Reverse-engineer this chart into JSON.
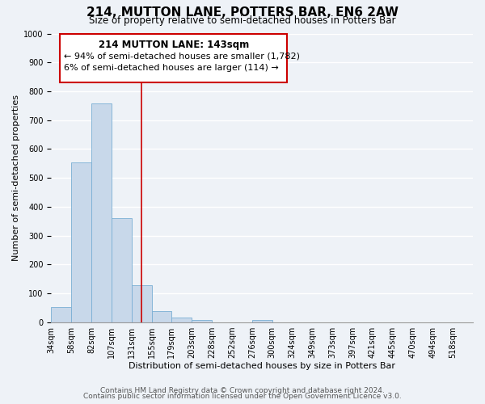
{
  "title": "214, MUTTON LANE, POTTERS BAR, EN6 2AW",
  "subtitle": "Size of property relative to semi-detached houses in Potters Bar",
  "xlabel": "Distribution of semi-detached houses by size in Potters Bar",
  "ylabel": "Number of semi-detached properties",
  "bin_labels": [
    "34sqm",
    "58sqm",
    "82sqm",
    "107sqm",
    "131sqm",
    "155sqm",
    "179sqm",
    "203sqm",
    "228sqm",
    "252sqm",
    "276sqm",
    "300sqm",
    "324sqm",
    "349sqm",
    "373sqm",
    "397sqm",
    "421sqm",
    "445sqm",
    "470sqm",
    "494sqm",
    "518sqm"
  ],
  "bar_values": [
    52,
    555,
    757,
    360,
    128,
    40,
    18,
    8,
    0,
    0,
    8,
    0,
    0,
    0,
    0,
    0,
    0,
    0,
    0,
    0,
    0
  ],
  "bar_color": "#c8d8ea",
  "bar_edge_color": "#7aafd4",
  "vline_color": "#cc0000",
  "annotation_box_title": "214 MUTTON LANE: 143sqm",
  "annotation_line1": "← 94% of semi-detached houses are smaller (1,782)",
  "annotation_line2": "6% of semi-detached houses are larger (114) →",
  "annotation_box_color": "#cc0000",
  "ylim": [
    0,
    1000
  ],
  "yticks": [
    0,
    100,
    200,
    300,
    400,
    500,
    600,
    700,
    800,
    900,
    1000
  ],
  "footer_line1": "Contains HM Land Registry data © Crown copyright and database right 2024.",
  "footer_line2": "Contains public sector information licensed under the Open Government Licence v3.0.",
  "bg_color": "#eef2f7",
  "plot_bg_color": "#eef2f7",
  "grid_color": "#ffffff",
  "title_fontsize": 11,
  "subtitle_fontsize": 8.5,
  "axis_label_fontsize": 8,
  "tick_fontsize": 7,
  "footer_fontsize": 6.5,
  "annotation_title_fontsize": 8.5,
  "annotation_fontsize": 8
}
